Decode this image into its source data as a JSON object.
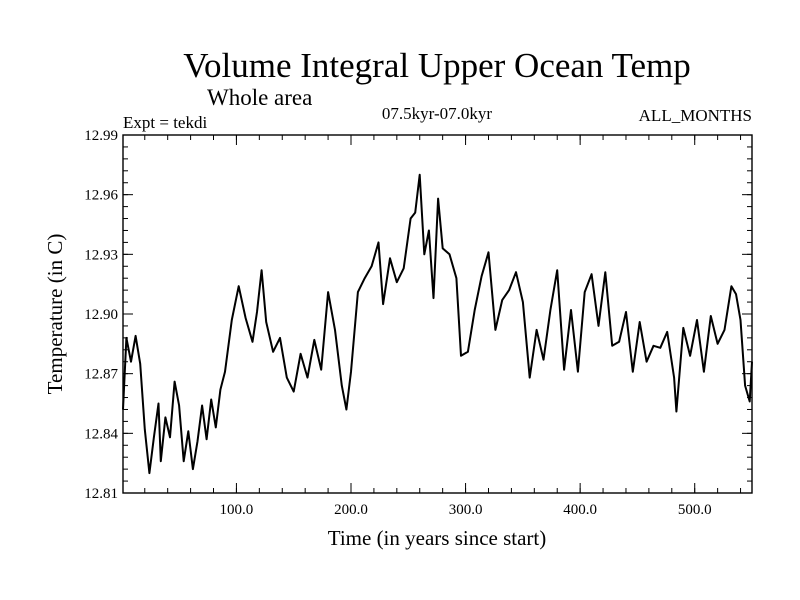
{
  "chart_data": {
    "type": "line",
    "title": "Volume Integral Upper Ocean Temp",
    "subtitle": "Whole area",
    "experiment": "Expt = tekdi",
    "period": "07.5kyr-07.0kyr",
    "months": "ALL_MONTHS",
    "xlabel": "Time (in years since start)",
    "ylabel": "Temperature (in C)",
    "xlim": [
      1,
      550
    ],
    "ylim": [
      12.81,
      12.99
    ],
    "xticks": [
      100,
      200,
      300,
      400,
      500
    ],
    "xtick_labels": [
      "100.0",
      "200.0",
      "300.0",
      "400.0",
      "500.0"
    ],
    "yticks": [
      12.81,
      12.84,
      12.87,
      12.9,
      12.93,
      12.96,
      12.99
    ],
    "ytick_labels": [
      "12.81",
      "12.84",
      "12.87",
      "12.90",
      "12.93",
      "12.96",
      "12.99"
    ],
    "x_minor_step": 20,
    "y_minor_step": 0.006,
    "series": [
      {
        "name": "Volume integral upper ocean temperature",
        "color": "#000000",
        "x": [
          1,
          4,
          8,
          12,
          16,
          20,
          24,
          28,
          32,
          34,
          38,
          42,
          46,
          50,
          54,
          58,
          62,
          66,
          70,
          74,
          78,
          82,
          86,
          90,
          96,
          102,
          108,
          114,
          118,
          122,
          126,
          132,
          138,
          144,
          150,
          156,
          162,
          168,
          174,
          180,
          186,
          192,
          196,
          200,
          206,
          212,
          218,
          224,
          228,
          234,
          240,
          246,
          252,
          256,
          260,
          264,
          268,
          272,
          276,
          280,
          286,
          292,
          296,
          302,
          308,
          314,
          320,
          326,
          332,
          338,
          344,
          350,
          356,
          362,
          368,
          374,
          380,
          386,
          392,
          398,
          404,
          410,
          416,
          422,
          428,
          434,
          440,
          446,
          452,
          458,
          464,
          470,
          476,
          482,
          484,
          490,
          496,
          502,
          508,
          514,
          520,
          526,
          532,
          536,
          540,
          544,
          548,
          550
        ],
        "values": [
          12.852,
          12.888,
          12.876,
          12.889,
          12.875,
          12.842,
          12.82,
          12.838,
          12.855,
          12.826,
          12.848,
          12.838,
          12.866,
          12.854,
          12.826,
          12.841,
          12.822,
          12.836,
          12.854,
          12.837,
          12.857,
          12.843,
          12.862,
          12.871,
          12.897,
          12.914,
          12.898,
          12.886,
          12.901,
          12.922,
          12.896,
          12.881,
          12.888,
          12.868,
          12.861,
          12.88,
          12.868,
          12.887,
          12.872,
          12.911,
          12.892,
          12.864,
          12.852,
          12.871,
          12.911,
          12.918,
          12.924,
          12.936,
          12.905,
          12.928,
          12.916,
          12.923,
          12.948,
          12.951,
          12.97,
          12.93,
          12.942,
          12.908,
          12.958,
          12.933,
          12.93,
          12.918,
          12.879,
          12.881,
          12.902,
          12.919,
          12.931,
          12.892,
          12.907,
          12.912,
          12.921,
          12.906,
          12.868,
          12.892,
          12.877,
          12.902,
          12.922,
          12.872,
          12.902,
          12.871,
          12.911,
          12.92,
          12.894,
          12.921,
          12.884,
          12.886,
          12.901,
          12.871,
          12.896,
          12.876,
          12.884,
          12.883,
          12.891,
          12.868,
          12.851,
          12.893,
          12.879,
          12.897,
          12.871,
          12.899,
          12.885,
          12.892,
          12.914,
          12.91,
          12.897,
          12.864,
          12.856,
          12.876
        ]
      }
    ]
  }
}
